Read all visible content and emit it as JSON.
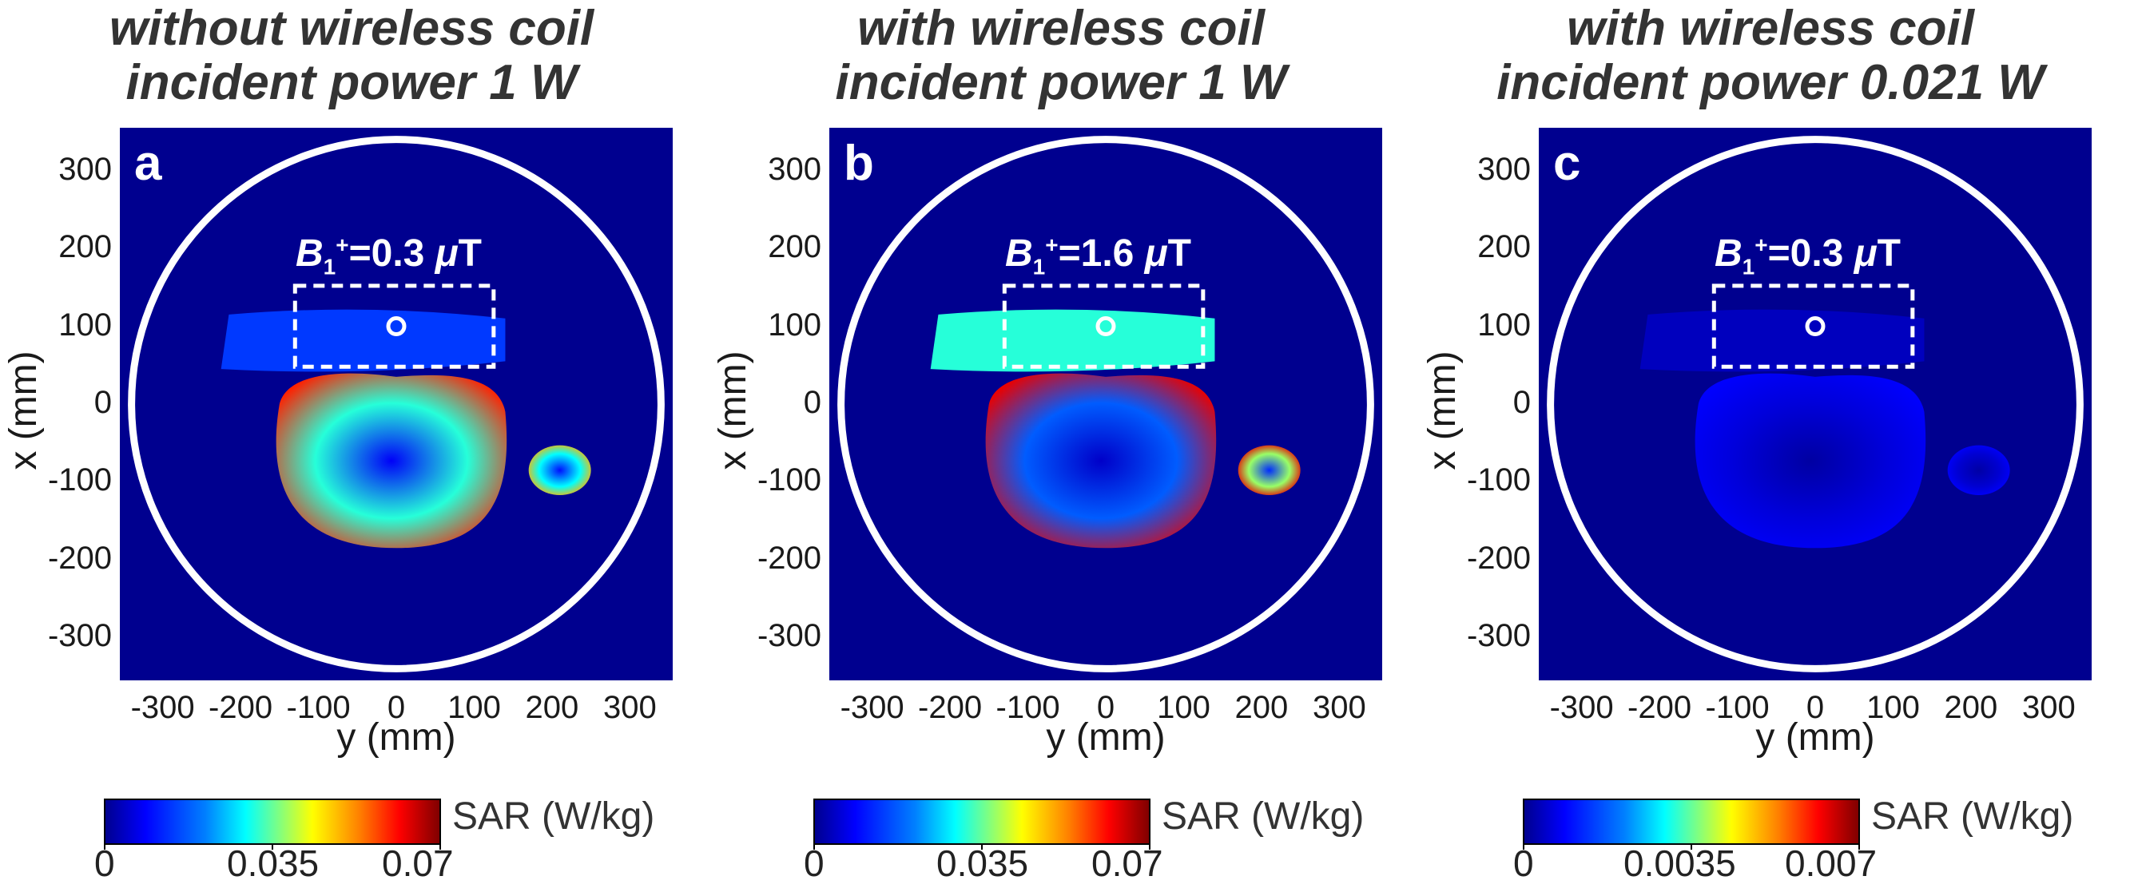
{
  "chart_data": [
    {
      "type": "heatmap",
      "panel_label": "a",
      "title_line1": "without wireless coil",
      "title_line2": "incident power 1 W",
      "b1_symbol": "B",
      "b1_sub": "1",
      "b1_sup": "+",
      "b1_value": "=0.3 ",
      "b1_unit_mu": "μ",
      "b1_unit": "T",
      "xlabel": "y (mm)",
      "ylabel": "x (mm)",
      "xticks": [
        "-300",
        "-200",
        "-100",
        "0",
        "100",
        "200",
        "300"
      ],
      "yticks": [
        "300",
        "200",
        "100",
        "0",
        "-100",
        "-200",
        "-300"
      ],
      "xlim": [
        -355,
        355
      ],
      "ylim": [
        -355,
        355
      ],
      "colorbar_label": "SAR (W/kg)",
      "colorbar_ticks": [
        "0",
        "0.035",
        "0.07"
      ],
      "colorbar_range": [
        0,
        0.07
      ],
      "sar_relative": {
        "torso": 0.45,
        "torso_edges": 0.85,
        "arm": 0.7,
        "chest_slab": 0.2
      }
    },
    {
      "type": "heatmap",
      "panel_label": "b",
      "title_line1": "with wireless coil",
      "title_line2": "incident power 1 W",
      "b1_symbol": "B",
      "b1_sub": "1",
      "b1_sup": "+",
      "b1_value": "=1.6 ",
      "b1_unit_mu": "μ",
      "b1_unit": "T",
      "xlabel": "y (mm)",
      "ylabel": "x (mm)",
      "xticks": [
        "-300",
        "-200",
        "-100",
        "0",
        "100",
        "200",
        "300"
      ],
      "yticks": [
        "300",
        "200",
        "100",
        "0",
        "-100",
        "-200",
        "-300"
      ],
      "xlim": [
        -355,
        355
      ],
      "ylim": [
        -355,
        355
      ],
      "colorbar_label": "SAR (W/kg)",
      "colorbar_ticks": [
        "0",
        "0.035",
        "0.07"
      ],
      "colorbar_range": [
        0,
        0.07
      ],
      "sar_relative": {
        "torso": 0.25,
        "torso_edges": 0.9,
        "arm": 0.9,
        "chest_slab": 0.45
      }
    },
    {
      "type": "heatmap",
      "panel_label": "c",
      "title_line1": "with wireless coil",
      "title_line2": "incident power 0.021 W",
      "b1_symbol": "B",
      "b1_sub": "1",
      "b1_sup": "+",
      "b1_value": "=0.3 ",
      "b1_unit_mu": "μ",
      "b1_unit": "T",
      "xlabel": "y (mm)",
      "ylabel": "x (mm)",
      "xticks": [
        "-300",
        "-200",
        "-100",
        "0",
        "100",
        "200",
        "300"
      ],
      "yticks": [
        "300",
        "200",
        "100",
        "0",
        "-100",
        "-200",
        "-300"
      ],
      "xlim": [
        -355,
        355
      ],
      "ylim": [
        -355,
        355
      ],
      "colorbar_label": "SAR (W/kg)",
      "colorbar_ticks": [
        "0",
        "0.0035",
        "0.007"
      ],
      "colorbar_range": [
        0,
        0.007
      ],
      "sar_relative": {
        "torso": 0.08,
        "torso_edges": 0.12,
        "arm": 0.12,
        "chest_slab": 0.05
      }
    }
  ]
}
